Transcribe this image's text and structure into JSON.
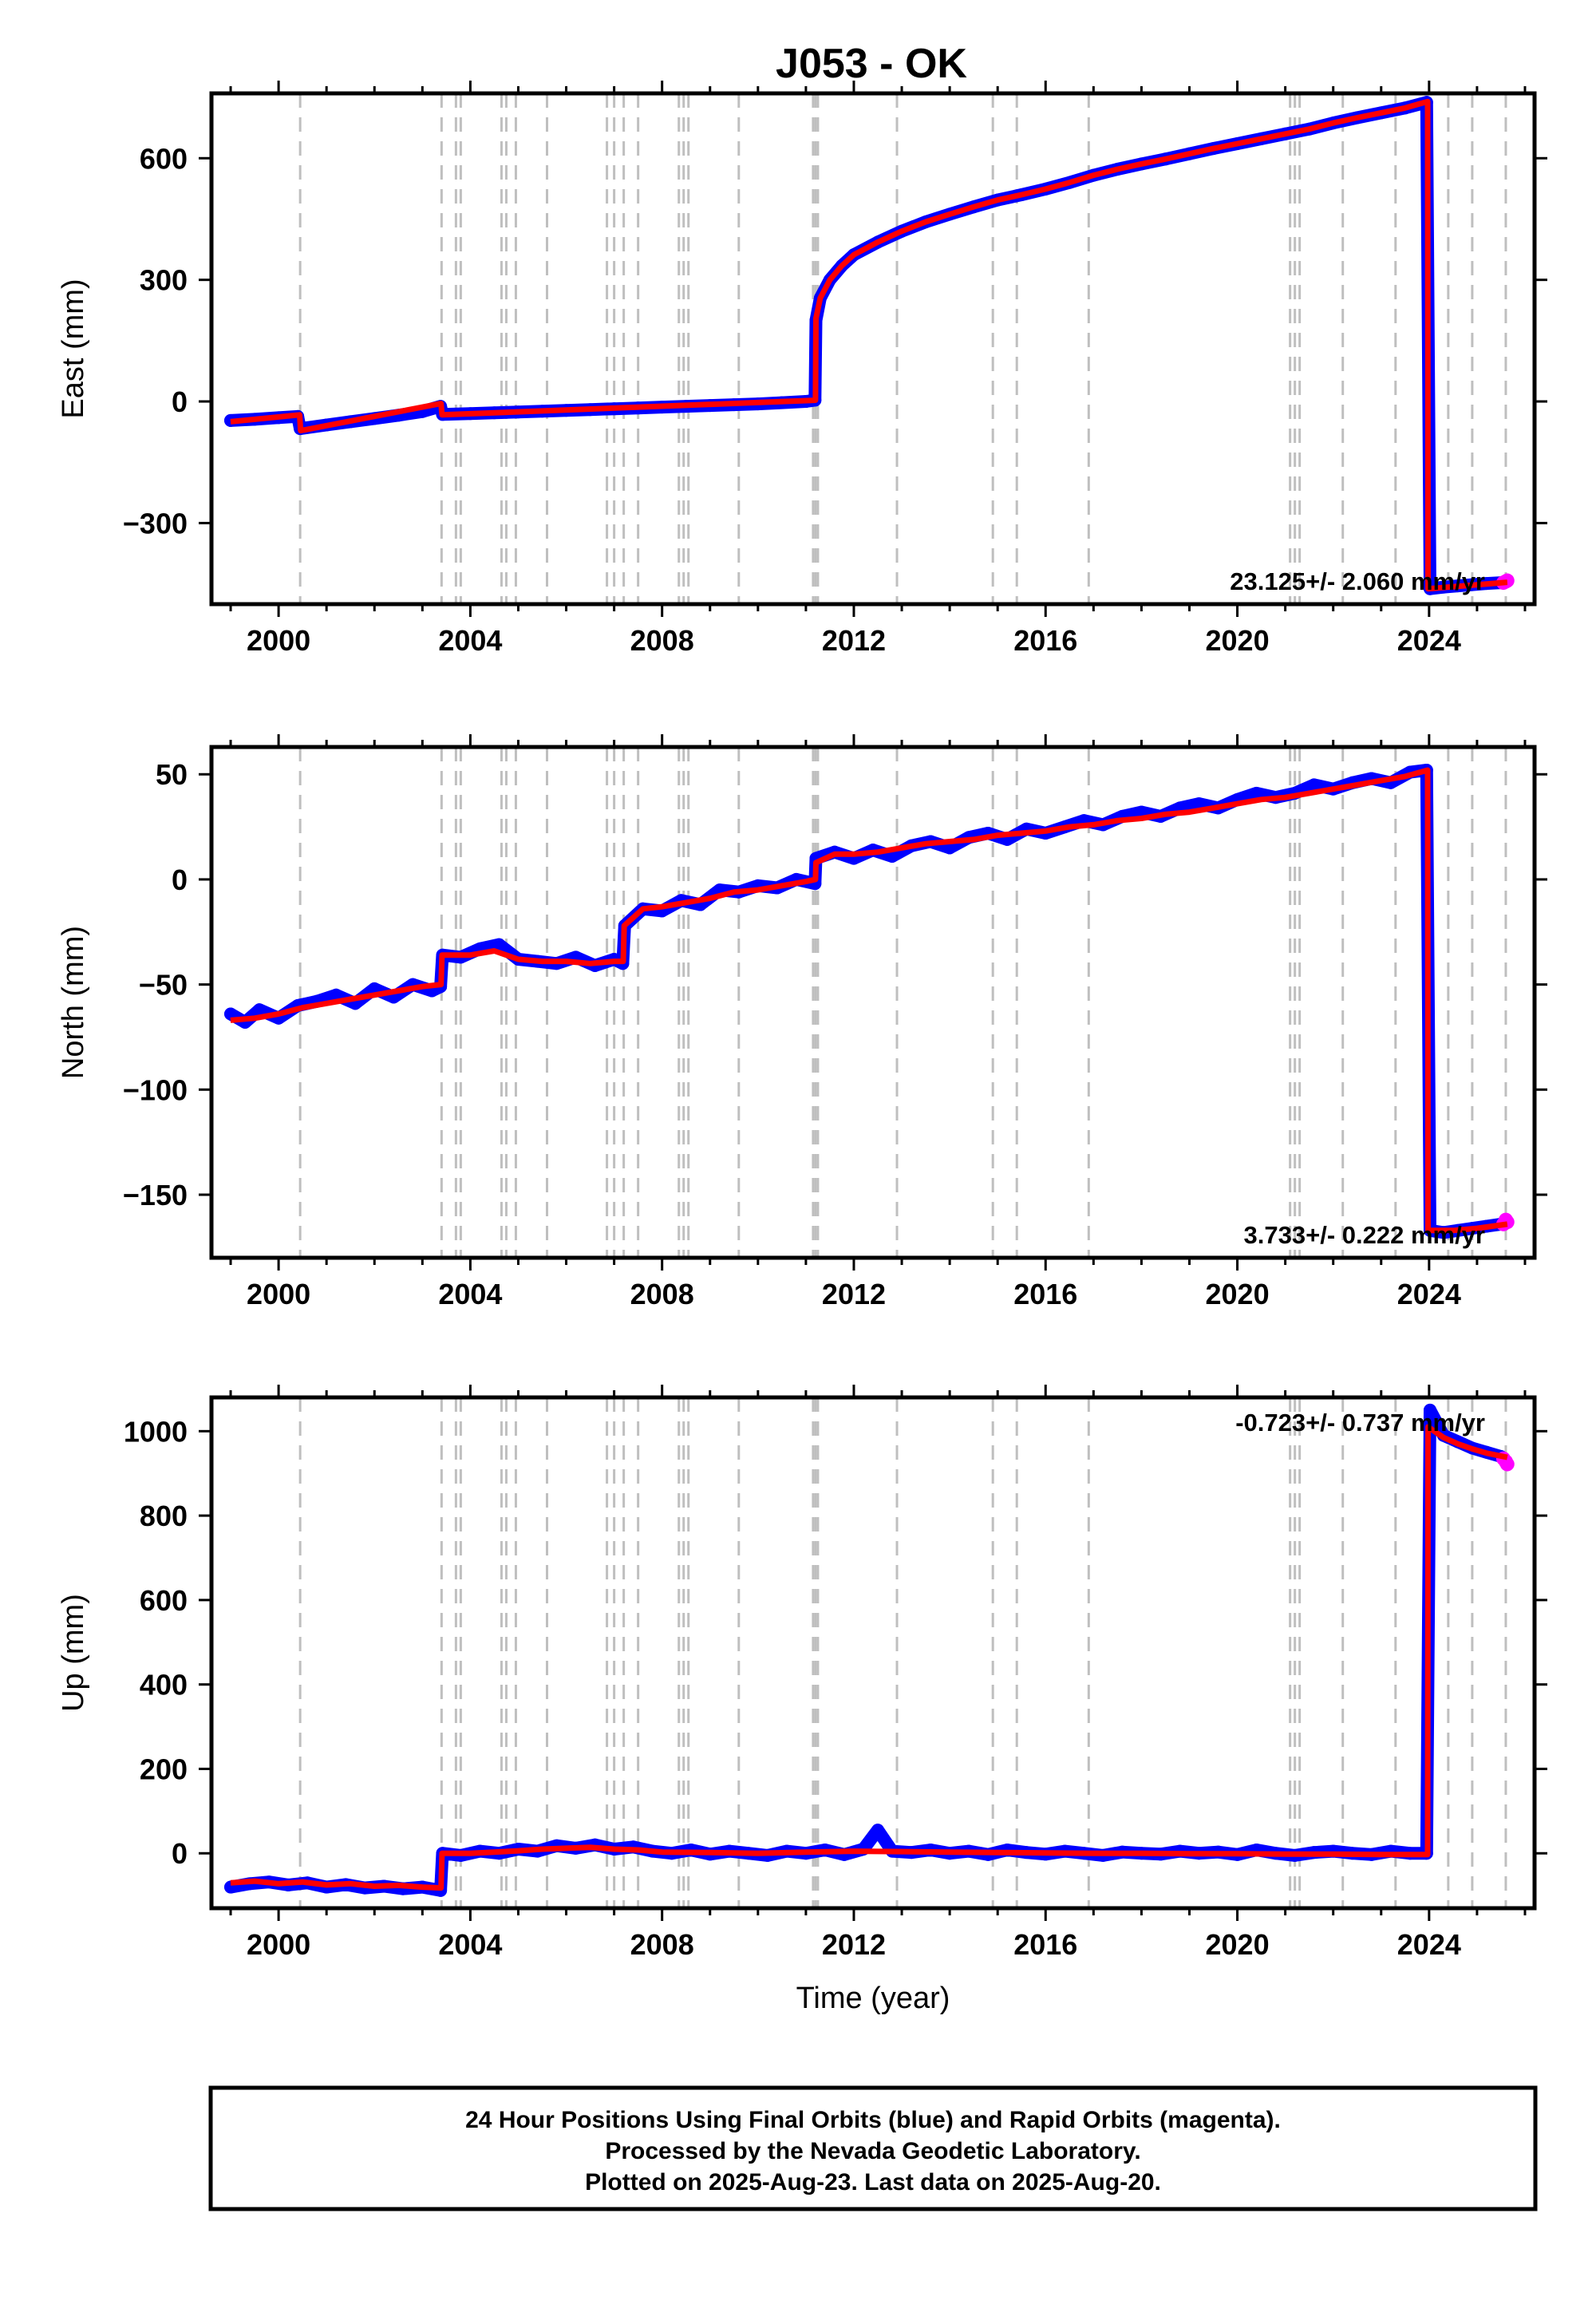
{
  "figure": {
    "title": "J053 - OK",
    "footer": [
      "24 Hour Positions Using Final Orbits (blue) and Rapid Orbits (magenta).",
      "Processed by the Nevada Geodetic Laboratory.",
      "Plotted on 2025-Aug-23. Last data on 2025-Aug-20."
    ],
    "colors": {
      "final_orbits": "#0000ff",
      "rapid_orbits": "#ff00ff",
      "model_fit": "#ff0000",
      "event_lines": "#bfbfbf",
      "frame": "#000000"
    }
  },
  "chart_data": [
    {
      "type": "scatter",
      "panel": "east",
      "title": "J053 - OK",
      "xlabel": "",
      "ylabel": "East (mm)",
      "xlim": [
        1998.6,
        2026.2
      ],
      "ylim": [
        -500,
        760
      ],
      "xticks": [
        2000,
        2004,
        2008,
        2012,
        2016,
        2020,
        2024
      ],
      "yticks": [
        -300,
        0,
        300,
        600
      ],
      "yticklabels": [
        "−300",
        "0",
        "300",
        "600"
      ],
      "rate_text": "23.125+/- 2.060 mm/yr",
      "rate_position": "bottom-right",
      "grid": false,
      "legend": "none",
      "event_lines": [
        2000.45,
        2003.4,
        2003.7,
        2003.8,
        2004.65,
        2004.75,
        2004.95,
        2005.6,
        2006.85,
        2007.0,
        2007.2,
        2007.5,
        2008.35,
        2008.45,
        2008.55,
        2009.6,
        2011.15,
        2011.2,
        2011.25,
        2012.9,
        2014.9,
        2015.4,
        2016.9,
        2021.1,
        2021.2,
        2021.3,
        2022.2,
        2023.3,
        2024.4,
        2024.9,
        2025.6
      ],
      "series": [
        {
          "name": "Final Orbits",
          "style": "points",
          "x": [
            1999.0,
            1999.5,
            2000.0,
            2000.4,
            2000.45,
            2001.0,
            2001.5,
            2002.0,
            2002.5,
            2003.0,
            2003.38,
            2003.42,
            2004.0,
            2004.5,
            2005.0,
            2005.5,
            2006.0,
            2006.5,
            2007.0,
            2007.5,
            2008.0,
            2008.5,
            2009.0,
            2009.5,
            2010.0,
            2010.5,
            2011.0,
            2011.19,
            2011.21,
            2011.3,
            2011.5,
            2011.75,
            2012.0,
            2012.5,
            2013.0,
            2013.5,
            2014.0,
            2014.5,
            2015.0,
            2015.5,
            2016.0,
            2016.5,
            2017.0,
            2017.5,
            2018.0,
            2018.5,
            2019.0,
            2019.5,
            2020.0,
            2020.5,
            2021.0,
            2021.5,
            2022.0,
            2022.5,
            2023.0,
            2023.5,
            2023.95,
            2024.02,
            2024.3,
            2024.6,
            2024.9,
            2025.2,
            2025.5
          ],
          "values": [
            -47,
            -44,
            -40,
            -37,
            -67,
            -58,
            -50,
            -42,
            -34,
            -25,
            -12,
            -32,
            -30,
            -28,
            -26,
            -24,
            -22,
            -20,
            -18,
            -16,
            -14,
            -12,
            -10,
            -8,
            -6,
            -3,
            0,
            3,
            200,
            255,
            300,
            335,
            362,
            393,
            420,
            443,
            462,
            480,
            497,
            510,
            524,
            540,
            558,
            573,
            586,
            598,
            611,
            624,
            636,
            648,
            660,
            672,
            687,
            700,
            712,
            724,
            738,
            -462,
            -458,
            -455,
            -452,
            -449,
            -447
          ]
        },
        {
          "name": "Rapid Orbits",
          "style": "points",
          "x": [
            2025.55,
            2025.6,
            2025.63
          ],
          "values": [
            -447,
            -444,
            -442
          ]
        },
        {
          "name": "Model",
          "style": "line",
          "x": [
            1999.0,
            2000.44,
            2000.46,
            2003.39,
            2003.41,
            2011.2,
            2011.21,
            2011.3,
            2011.5,
            2011.75,
            2012.0,
            2012.5,
            2013.0,
            2013.5,
            2014.0,
            2014.5,
            2015.0,
            2015.5,
            2016.0,
            2016.5,
            2017.0,
            2017.5,
            2018.0,
            2018.5,
            2019.0,
            2019.5,
            2020.0,
            2020.5,
            2021.0,
            2021.5,
            2022.0,
            2022.5,
            2023.0,
            2023.5,
            2023.97,
            2023.98,
            2025.63
          ],
          "values": [
            -50,
            -33,
            -72,
            -5,
            -33,
            3,
            205,
            255,
            300,
            335,
            362,
            393,
            420,
            443,
            462,
            480,
            497,
            510,
            524,
            540,
            558,
            573,
            586,
            598,
            611,
            624,
            636,
            648,
            660,
            672,
            687,
            700,
            712,
            724,
            740,
            -462,
            -446
          ]
        }
      ]
    },
    {
      "type": "scatter",
      "panel": "north",
      "xlabel": "",
      "ylabel": "North (mm)",
      "xlim": [
        1998.6,
        2026.2
      ],
      "ylim": [
        -180,
        63
      ],
      "xticks": [
        2000,
        2004,
        2008,
        2012,
        2016,
        2020,
        2024
      ],
      "yticks": [
        -150,
        -100,
        -50,
        0,
        50
      ],
      "yticklabels": [
        "−150",
        "−100",
        "−50",
        "0",
        "50"
      ],
      "rate_text": "3.733+/- 0.222 mm/yr",
      "rate_position": "bottom-right",
      "grid": false,
      "legend": "none",
      "event_lines": [
        2000.45,
        2003.4,
        2003.7,
        2003.8,
        2004.65,
        2004.75,
        2004.95,
        2005.6,
        2006.85,
        2007.0,
        2007.2,
        2007.5,
        2008.35,
        2008.45,
        2008.55,
        2009.6,
        2011.15,
        2011.2,
        2011.25,
        2012.9,
        2014.9,
        2015.4,
        2016.9,
        2021.1,
        2021.2,
        2021.3,
        2022.2,
        2023.3,
        2024.4,
        2024.9,
        2025.6
      ],
      "series": [
        {
          "name": "Final Orbits",
          "style": "points",
          "x": [
            1999.0,
            1999.3,
            1999.6,
            2000.0,
            2000.4,
            2000.8,
            2001.2,
            2001.6,
            2002.0,
            2002.4,
            2002.8,
            2003.2,
            2003.38,
            2003.42,
            2003.8,
            2004.2,
            2004.6,
            2005.0,
            2005.4,
            2005.8,
            2006.2,
            2006.6,
            2007.0,
            2007.18,
            2007.22,
            2007.6,
            2008.0,
            2008.4,
            2008.8,
            2009.2,
            2009.6,
            2010.0,
            2010.4,
            2010.8,
            2011.19,
            2011.21,
            2011.6,
            2012.0,
            2012.4,
            2012.8,
            2013.2,
            2013.6,
            2014.0,
            2014.4,
            2014.8,
            2015.2,
            2015.6,
            2016.0,
            2016.4,
            2016.8,
            2017.2,
            2017.6,
            2018.0,
            2018.4,
            2018.8,
            2019.2,
            2019.6,
            2020.0,
            2020.4,
            2020.8,
            2021.2,
            2021.6,
            2022.0,
            2022.4,
            2022.8,
            2023.2,
            2023.6,
            2023.95,
            2024.02,
            2024.3,
            2024.6,
            2024.9,
            2025.2,
            2025.5
          ],
          "values": [
            -64,
            -68,
            -62,
            -66,
            -60,
            -58,
            -55,
            -59,
            -52,
            -56,
            -50,
            -53,
            -51,
            -36,
            -37,
            -33,
            -31,
            -38,
            -39,
            -40,
            -37,
            -41,
            -38,
            -40,
            -22,
            -14,
            -15,
            -10,
            -12,
            -5,
            -6,
            -3,
            -4,
            0,
            -2,
            10,
            13,
            10,
            14,
            11,
            16,
            18,
            15,
            20,
            22,
            19,
            24,
            22,
            25,
            28,
            26,
            30,
            32,
            30,
            34,
            36,
            34,
            38,
            41,
            39,
            41,
            45,
            43,
            46,
            48,
            46,
            51,
            52,
            -167,
            -168,
            -167,
            -166,
            -165,
            -164
          ]
        },
        {
          "name": "Rapid Orbits",
          "style": "points",
          "x": [
            2025.55,
            2025.6,
            2025.63
          ],
          "values": [
            -164,
            -162,
            -163
          ]
        },
        {
          "name": "Model",
          "style": "line",
          "x": [
            1999.0,
            1999.5,
            2000.0,
            2000.5,
            2001.0,
            2001.5,
            2002.0,
            2002.5,
            2003.0,
            2003.39,
            2003.41,
            2004.0,
            2004.5,
            2005.0,
            2005.5,
            2006.0,
            2006.5,
            2007.0,
            2007.19,
            2007.21,
            2007.6,
            2008.0,
            2008.5,
            2009.0,
            2009.5,
            2010.0,
            2010.5,
            2011.0,
            2011.2,
            2011.21,
            2011.6,
            2012.0,
            2012.5,
            2013.0,
            2013.5,
            2014.0,
            2014.5,
            2015.0,
            2015.5,
            2016.0,
            2016.5,
            2017.0,
            2017.5,
            2018.0,
            2018.5,
            2019.0,
            2019.5,
            2020.0,
            2020.5,
            2021.0,
            2021.5,
            2022.0,
            2022.5,
            2023.0,
            2023.5,
            2023.97,
            2023.98,
            2024.5,
            2025.0,
            2025.63
          ],
          "values": [
            -67,
            -66,
            -64,
            -61,
            -59,
            -57,
            -55,
            -53,
            -51,
            -50,
            -36,
            -36,
            -34,
            -38,
            -39,
            -39,
            -40,
            -39,
            -39,
            -22,
            -14,
            -13,
            -11,
            -9,
            -6,
            -5,
            -3,
            -1,
            0,
            8,
            12,
            12,
            13,
            15,
            17,
            18,
            19,
            21,
            22,
            23,
            25,
            26,
            28,
            29,
            31,
            32,
            34,
            36,
            38,
            39,
            41,
            43,
            45,
            47,
            49,
            52,
            -167,
            -167,
            -166,
            -164
          ]
        }
      ]
    },
    {
      "type": "scatter",
      "panel": "up",
      "xlabel": "Time (year)",
      "ylabel": "Up (mm)",
      "xlim": [
        1998.6,
        2026.2
      ],
      "ylim": [
        -130,
        1080
      ],
      "xticks": [
        2000,
        2004,
        2008,
        2012,
        2016,
        2020,
        2024
      ],
      "yticks": [
        0,
        200,
        400,
        600,
        800,
        1000
      ],
      "yticklabels": [
        "0",
        "200",
        "400",
        "600",
        "800",
        "1000"
      ],
      "rate_text": "-0.723+/- 0.737 mm/yr",
      "rate_position": "top-right",
      "grid": false,
      "legend": "none",
      "event_lines": [
        2000.45,
        2003.4,
        2003.7,
        2003.8,
        2004.65,
        2004.75,
        2004.95,
        2005.6,
        2006.85,
        2007.0,
        2007.2,
        2007.5,
        2008.35,
        2008.45,
        2008.55,
        2009.6,
        2011.15,
        2011.2,
        2011.25,
        2012.9,
        2014.9,
        2015.4,
        2016.9,
        2021.1,
        2021.2,
        2021.3,
        2022.2,
        2023.3,
        2024.4,
        2024.9,
        2025.6
      ],
      "series": [
        {
          "name": "Final Orbits",
          "style": "points",
          "x": [
            1999.0,
            1999.4,
            1999.8,
            2000.2,
            2000.6,
            2001.0,
            2001.4,
            2001.8,
            2002.2,
            2002.6,
            2003.0,
            2003.38,
            2003.42,
            2003.8,
            2004.2,
            2004.6,
            2005.0,
            2005.4,
            2005.8,
            2006.2,
            2006.6,
            2007.0,
            2007.4,
            2007.8,
            2008.2,
            2008.6,
            2009.0,
            2009.4,
            2009.8,
            2010.2,
            2010.6,
            2011.0,
            2011.4,
            2011.8,
            2012.2,
            2012.5,
            2012.8,
            2013.2,
            2013.6,
            2014.0,
            2014.4,
            2014.8,
            2015.2,
            2015.6,
            2016.0,
            2016.4,
            2016.8,
            2017.2,
            2017.6,
            2018.0,
            2018.4,
            2018.8,
            2019.2,
            2019.6,
            2020.0,
            2020.4,
            2020.8,
            2021.2,
            2021.6,
            2022.0,
            2022.4,
            2022.8,
            2023.2,
            2023.6,
            2023.95,
            2024.02,
            2024.3,
            2024.6,
            2024.9,
            2025.2,
            2025.5
          ],
          "values": [
            -80,
            -72,
            -68,
            -75,
            -70,
            -80,
            -74,
            -82,
            -78,
            -84,
            -80,
            -88,
            0,
            -5,
            5,
            0,
            10,
            5,
            18,
            12,
            20,
            10,
            15,
            5,
            0,
            8,
            -2,
            5,
            0,
            -5,
            5,
            0,
            8,
            -3,
            10,
            55,
            5,
            2,
            8,
            0,
            5,
            -3,
            8,
            2,
            -2,
            5,
            0,
            -5,
            3,
            0,
            -2,
            5,
            0,
            3,
            -3,
            8,
            0,
            -5,
            2,
            5,
            0,
            -3,
            5,
            0,
            0,
            1050,
            990,
            975,
            960,
            950,
            940
          ]
        },
        {
          "name": "Rapid Orbits",
          "style": "points",
          "x": [
            2025.55,
            2025.6,
            2025.63
          ],
          "values": [
            935,
            928,
            922
          ]
        },
        {
          "name": "Model",
          "style": "line",
          "x": [
            1999.0,
            1999.5,
            2000.0,
            2000.5,
            2001.0,
            2001.5,
            2002.0,
            2002.5,
            2003.0,
            2003.39,
            2003.41,
            2004.0,
            2004.5,
            2005.0,
            2005.5,
            2006.0,
            2006.5,
            2007.0,
            2007.5,
            2008.0,
            2009.0,
            2010.0,
            2011.0,
            2012.0,
            2013.0,
            2014.0,
            2015.0,
            2016.0,
            2017.0,
            2018.0,
            2019.0,
            2020.0,
            2021.0,
            2022.0,
            2023.0,
            2023.97,
            2023.98,
            2024.3,
            2024.6,
            2024.9,
            2025.2,
            2025.63
          ],
          "values": [
            -70,
            -66,
            -72,
            -68,
            -75,
            -72,
            -78,
            -76,
            -80,
            -82,
            0,
            0,
            3,
            6,
            10,
            12,
            14,
            10,
            8,
            3,
            2,
            0,
            3,
            5,
            4,
            3,
            2,
            1,
            0,
            0,
            -1,
            -1,
            -2,
            -2,
            -3,
            -3,
            1010,
            985,
            970,
            958,
            948,
            938
          ]
        }
      ]
    }
  ]
}
